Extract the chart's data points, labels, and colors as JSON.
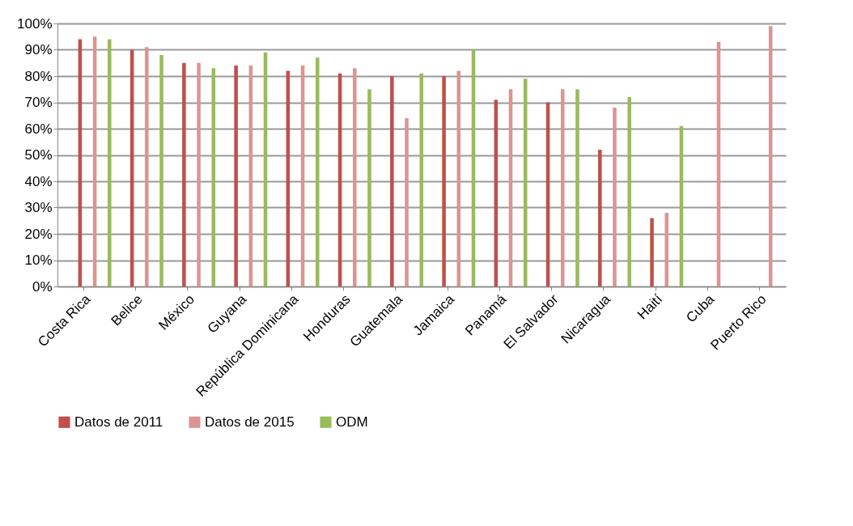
{
  "chart_data": {
    "type": "bar",
    "categories": [
      "Costa Rica",
      "Belice",
      "México",
      "Guyana",
      "República Dominicana",
      "Honduras",
      "Guatemala",
      "Jamaica",
      "Panamá",
      "El Salvador",
      "Nicaragua",
      "Haití",
      "Cuba",
      "Puerto Rico"
    ],
    "series": [
      {
        "name": "Datos de 2011",
        "color": "#c0504d",
        "values": [
          94,
          90,
          85,
          84,
          82,
          81,
          80,
          80,
          71,
          70,
          52,
          26,
          null,
          null
        ]
      },
      {
        "name": "Datos de 2015",
        "color": "#d99694",
        "values": [
          95,
          91,
          85,
          84,
          84,
          83,
          64,
          82,
          75,
          75,
          68,
          28,
          93,
          99
        ]
      },
      {
        "name": "ODM",
        "color": "#9bbb59",
        "values": [
          94,
          88,
          83,
          89,
          87,
          75,
          81,
          90,
          79,
          75,
          72,
          61,
          null,
          null
        ]
      }
    ],
    "ylim": [
      0,
      100
    ],
    "yticks": [
      {
        "value": 0,
        "label": "0%"
      },
      {
        "value": 10,
        "label": "10%"
      },
      {
        "value": 20,
        "label": "20%"
      },
      {
        "value": 30,
        "label": "30%"
      },
      {
        "value": 40,
        "label": "40%"
      },
      {
        "value": 50,
        "label": "50%"
      },
      {
        "value": 60,
        "label": "60%"
      },
      {
        "value": 70,
        "label": "70%"
      },
      {
        "value": 80,
        "label": "80%"
      },
      {
        "value": 90,
        "label": "90%"
      },
      {
        "value": 100,
        "label": "100%"
      }
    ],
    "grid": "y",
    "legend": "bottom"
  }
}
